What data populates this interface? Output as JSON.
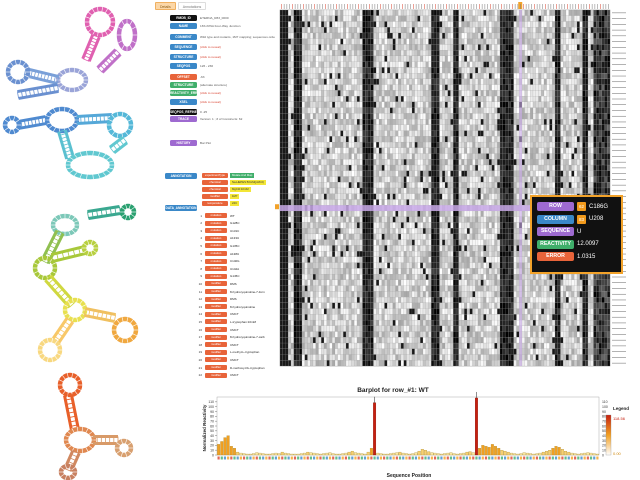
{
  "tabs": [
    {
      "label": "Details",
      "active": true
    },
    {
      "label": "Annotations",
      "active": false
    }
  ],
  "meta": {
    "fields": [
      {
        "label": "RMDB_ID",
        "value": "ETERNA_R83_0000",
        "color": "black"
      },
      {
        "label": "NAME",
        "value": "16S rRNA Four-Way Junction",
        "color": "#3a88c8"
      },
      {
        "label": "COMMENT",
        "value": "Wild type and mutants, 1M7 mapping; sequences ordered",
        "color": "#3a88c8"
      },
      {
        "label": "SEQUENCE",
        "value": "(click to reveal)",
        "color": "#3a88c8"
      },
      {
        "label": "STRUCTURE",
        "value": "(click to reveal)",
        "color": "#3a88c8"
      },
      {
        "label": "SEQPOS",
        "value": "126 - 230",
        "color": "#3a88c8"
      },
      {
        "label": "OFFSET",
        "value": "-63",
        "color": "#e8643a"
      },
      {
        "label": "STRUCTURE",
        "value": "(alternate structure)",
        "color": "#3fae6a"
      },
      {
        "label": "REACTIVITY_ERROR",
        "value": "(click to reveal)",
        "color": "#3fae6a"
      },
      {
        "label": "XSEL",
        "value": "(click to reveal)",
        "color": "#3a88c8"
      },
      {
        "label": "SEQPOS_REFINE",
        "value": "0 -25",
        "color": "#111"
      },
      {
        "label": "TRACE",
        "value": "Version: 1 ; # of Constructs: 62",
        "color": "#9e6ad0"
      },
      {
        "label": "HISTORY",
        "value": "Bar Plot",
        "color": "#9e6ad0"
      }
    ],
    "annotation_label": "ANNOTATION",
    "annotations": [
      {
        "tag": "experimentType",
        "value": "Mutate And Map"
      },
      {
        "tag": "chemical",
        "value": "Na-HEPES:50mM(pH8.0)"
      },
      {
        "tag": "chemical",
        "value": "MgCl2:10mM"
      },
      {
        "tag": "modifier",
        "value": "1M7"
      },
      {
        "tag": "temperature",
        "value": "24C"
      }
    ],
    "data_annotation_label": "DATA_ANNOTATION",
    "data_rows": [
      {
        "idx": "1",
        "tag": "mutation",
        "value": "WT"
      },
      {
        "idx": "2",
        "tag": "mutation",
        "value": "G128C"
      },
      {
        "idx": "3",
        "tag": "mutation",
        "value": "U131C"
      },
      {
        "idx": "4",
        "tag": "mutation",
        "value": "A133U"
      },
      {
        "idx": "5",
        "tag": "mutation",
        "value": "G135C"
      },
      {
        "idx": "6",
        "tag": "mutation",
        "value": "A138U"
      },
      {
        "idx": "7",
        "tag": "mutation",
        "value": "C140G"
      },
      {
        "idx": "8",
        "tag": "mutation",
        "value": "U142A"
      },
      {
        "idx": "9",
        "tag": "mutation",
        "value": "G145C"
      },
      {
        "idx": "10",
        "tag": "modifier",
        "value": "DMS"
      },
      {
        "idx": "11",
        "tag": "modifier",
        "value": "8-hydroxyquinoline-7-form"
      },
      {
        "idx": "12",
        "tag": "modifier",
        "value": "DMS"
      },
      {
        "idx": "13",
        "tag": "modifier",
        "value": "8-hydroxyquinoline"
      },
      {
        "idx": "14",
        "tag": "modifier",
        "value": "CMCT"
      },
      {
        "idx": "15",
        "tag": "modifier",
        "value": "L-tryptophan:10mM"
      },
      {
        "idx": "16",
        "tag": "modifier",
        "value": "CMCT"
      },
      {
        "idx": "17",
        "tag": "modifier",
        "value": "8-hydroxyquinoline-7-carb"
      },
      {
        "idx": "18",
        "tag": "modifier",
        "value": "CMCT"
      },
      {
        "idx": "19",
        "tag": "modifier",
        "value": "L-methyl-L-tryptophan"
      },
      {
        "idx": "20",
        "tag": "modifier",
        "value": "CMCT"
      },
      {
        "idx": "21",
        "tag": "modifier",
        "value": "D-methoxy-DL-tryptophan"
      },
      {
        "idx": "22",
        "tag": "modifier",
        "value": "CMCT"
      }
    ]
  },
  "tooltip": {
    "row_label": "ROW",
    "row_badge": "62",
    "row_value": "C186G",
    "column_label": "COLUMN",
    "column_badge": "83",
    "column_value": "U208",
    "sequence_label": "SEQUENCE",
    "sequence_value": "U",
    "reactivity_label": "REACTIVITY",
    "reactivity_value": "12.0097",
    "error_label": "ERROR",
    "error_value": "1.0315",
    "colors": {
      "row": "#9e6ad0",
      "column": "#3a88c8",
      "sequence": "#9e6ad0",
      "reactivity": "#3fae6a",
      "error": "#e8643a",
      "badge": "#f29a1c",
      "border": "#f2a22a"
    }
  },
  "chart_data": {
    "type": "bar",
    "title": "Barplot for row_#1: WT",
    "xlabel": "Sequence Position",
    "ylabel": "Normalized Reactivity",
    "ylim": [
      0,
      120
    ],
    "yticks": [
      0,
      10,
      20,
      30,
      40,
      50,
      60,
      70,
      80,
      90,
      100,
      110
    ],
    "legend_title": "Legend",
    "legend_max": "118.56",
    "legend_min": "0.00",
    "values": [
      22,
      28,
      36,
      40,
      18,
      14,
      6,
      4,
      3,
      2,
      2,
      3,
      5,
      4,
      3,
      2,
      2,
      3,
      4,
      3,
      6,
      4,
      3,
      2,
      2,
      2,
      3,
      4,
      6,
      5,
      4,
      3,
      2,
      3,
      4,
      5,
      3,
      2,
      2,
      3,
      4,
      6,
      8,
      5,
      4,
      3,
      2,
      6,
      14,
      108,
      4,
      3,
      2,
      2,
      3,
      4,
      5,
      6,
      4,
      3,
      2,
      3,
      5,
      8,
      12,
      10,
      7,
      5,
      4,
      3,
      2,
      3,
      4,
      5,
      3,
      2,
      3,
      4,
      6,
      7,
      5,
      118,
      14,
      20,
      18,
      16,
      22,
      18,
      14,
      10,
      8,
      6,
      4,
      3,
      2,
      3,
      5,
      4,
      3,
      2,
      3,
      4,
      6,
      8,
      10,
      14,
      18,
      16,
      12,
      8,
      6,
      4,
      3,
      2,
      3,
      4,
      5,
      4,
      3,
      2
    ],
    "series_colors": {
      "high": "#c62010",
      "mid": "#f2a022",
      "low": "#fde8a0"
    }
  }
}
